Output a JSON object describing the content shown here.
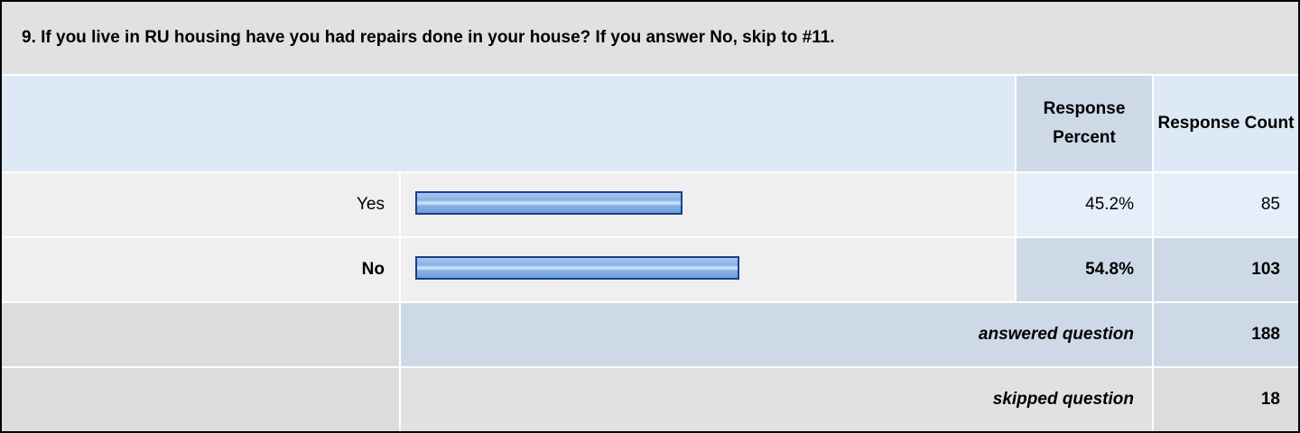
{
  "question": "9. If you live in RU housing have you had repairs done in your house? If you answer No, skip to #11.",
  "header": {
    "percent": "Response Percent",
    "count": "Response Count"
  },
  "rows": [
    {
      "label": "Yes",
      "percent": 45.2,
      "percent_label": "45.2%",
      "count": 85
    },
    {
      "label": "No",
      "percent": 54.8,
      "percent_label": "54.8%",
      "count": 103
    }
  ],
  "answered": {
    "label": "answered question",
    "count": 188
  },
  "skipped": {
    "label": "skipped question",
    "count": 18
  }
}
